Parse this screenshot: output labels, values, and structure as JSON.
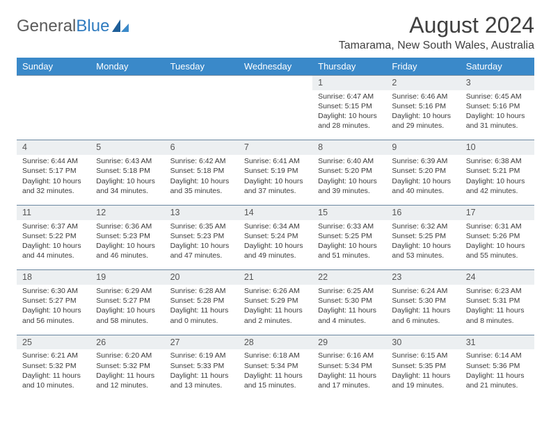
{
  "logo": {
    "text1": "General",
    "text2": "Blue"
  },
  "title": "August 2024",
  "location": "Tamarama, New South Wales, Australia",
  "colors": {
    "header_bg": "#3a89c9",
    "header_text": "#ffffff",
    "daynum_bg": "#eceff1",
    "border": "#6a87a0",
    "text": "#3a3a3a",
    "logo_gray": "#5a5a5a",
    "logo_blue": "#2f7bbf"
  },
  "weekdays": [
    "Sunday",
    "Monday",
    "Tuesday",
    "Wednesday",
    "Thursday",
    "Friday",
    "Saturday"
  ],
  "weeks": [
    {
      "nums": [
        "",
        "",
        "",
        "",
        "1",
        "2",
        "3"
      ],
      "cells": [
        null,
        null,
        null,
        null,
        {
          "sr": "Sunrise: 6:47 AM",
          "ss": "Sunset: 5:15 PM",
          "d1": "Daylight: 10 hours",
          "d2": "and 28 minutes."
        },
        {
          "sr": "Sunrise: 6:46 AM",
          "ss": "Sunset: 5:16 PM",
          "d1": "Daylight: 10 hours",
          "d2": "and 29 minutes."
        },
        {
          "sr": "Sunrise: 6:45 AM",
          "ss": "Sunset: 5:16 PM",
          "d1": "Daylight: 10 hours",
          "d2": "and 31 minutes."
        }
      ]
    },
    {
      "nums": [
        "4",
        "5",
        "6",
        "7",
        "8",
        "9",
        "10"
      ],
      "cells": [
        {
          "sr": "Sunrise: 6:44 AM",
          "ss": "Sunset: 5:17 PM",
          "d1": "Daylight: 10 hours",
          "d2": "and 32 minutes."
        },
        {
          "sr": "Sunrise: 6:43 AM",
          "ss": "Sunset: 5:18 PM",
          "d1": "Daylight: 10 hours",
          "d2": "and 34 minutes."
        },
        {
          "sr": "Sunrise: 6:42 AM",
          "ss": "Sunset: 5:18 PM",
          "d1": "Daylight: 10 hours",
          "d2": "and 35 minutes."
        },
        {
          "sr": "Sunrise: 6:41 AM",
          "ss": "Sunset: 5:19 PM",
          "d1": "Daylight: 10 hours",
          "d2": "and 37 minutes."
        },
        {
          "sr": "Sunrise: 6:40 AM",
          "ss": "Sunset: 5:20 PM",
          "d1": "Daylight: 10 hours",
          "d2": "and 39 minutes."
        },
        {
          "sr": "Sunrise: 6:39 AM",
          "ss": "Sunset: 5:20 PM",
          "d1": "Daylight: 10 hours",
          "d2": "and 40 minutes."
        },
        {
          "sr": "Sunrise: 6:38 AM",
          "ss": "Sunset: 5:21 PM",
          "d1": "Daylight: 10 hours",
          "d2": "and 42 minutes."
        }
      ]
    },
    {
      "nums": [
        "11",
        "12",
        "13",
        "14",
        "15",
        "16",
        "17"
      ],
      "cells": [
        {
          "sr": "Sunrise: 6:37 AM",
          "ss": "Sunset: 5:22 PM",
          "d1": "Daylight: 10 hours",
          "d2": "and 44 minutes."
        },
        {
          "sr": "Sunrise: 6:36 AM",
          "ss": "Sunset: 5:23 PM",
          "d1": "Daylight: 10 hours",
          "d2": "and 46 minutes."
        },
        {
          "sr": "Sunrise: 6:35 AM",
          "ss": "Sunset: 5:23 PM",
          "d1": "Daylight: 10 hours",
          "d2": "and 47 minutes."
        },
        {
          "sr": "Sunrise: 6:34 AM",
          "ss": "Sunset: 5:24 PM",
          "d1": "Daylight: 10 hours",
          "d2": "and 49 minutes."
        },
        {
          "sr": "Sunrise: 6:33 AM",
          "ss": "Sunset: 5:25 PM",
          "d1": "Daylight: 10 hours",
          "d2": "and 51 minutes."
        },
        {
          "sr": "Sunrise: 6:32 AM",
          "ss": "Sunset: 5:25 PM",
          "d1": "Daylight: 10 hours",
          "d2": "and 53 minutes."
        },
        {
          "sr": "Sunrise: 6:31 AM",
          "ss": "Sunset: 5:26 PM",
          "d1": "Daylight: 10 hours",
          "d2": "and 55 minutes."
        }
      ]
    },
    {
      "nums": [
        "18",
        "19",
        "20",
        "21",
        "22",
        "23",
        "24"
      ],
      "cells": [
        {
          "sr": "Sunrise: 6:30 AM",
          "ss": "Sunset: 5:27 PM",
          "d1": "Daylight: 10 hours",
          "d2": "and 56 minutes."
        },
        {
          "sr": "Sunrise: 6:29 AM",
          "ss": "Sunset: 5:27 PM",
          "d1": "Daylight: 10 hours",
          "d2": "and 58 minutes."
        },
        {
          "sr": "Sunrise: 6:28 AM",
          "ss": "Sunset: 5:28 PM",
          "d1": "Daylight: 11 hours",
          "d2": "and 0 minutes."
        },
        {
          "sr": "Sunrise: 6:26 AM",
          "ss": "Sunset: 5:29 PM",
          "d1": "Daylight: 11 hours",
          "d2": "and 2 minutes."
        },
        {
          "sr": "Sunrise: 6:25 AM",
          "ss": "Sunset: 5:30 PM",
          "d1": "Daylight: 11 hours",
          "d2": "and 4 minutes."
        },
        {
          "sr": "Sunrise: 6:24 AM",
          "ss": "Sunset: 5:30 PM",
          "d1": "Daylight: 11 hours",
          "d2": "and 6 minutes."
        },
        {
          "sr": "Sunrise: 6:23 AM",
          "ss": "Sunset: 5:31 PM",
          "d1": "Daylight: 11 hours",
          "d2": "and 8 minutes."
        }
      ]
    },
    {
      "nums": [
        "25",
        "26",
        "27",
        "28",
        "29",
        "30",
        "31"
      ],
      "cells": [
        {
          "sr": "Sunrise: 6:21 AM",
          "ss": "Sunset: 5:32 PM",
          "d1": "Daylight: 11 hours",
          "d2": "and 10 minutes."
        },
        {
          "sr": "Sunrise: 6:20 AM",
          "ss": "Sunset: 5:32 PM",
          "d1": "Daylight: 11 hours",
          "d2": "and 12 minutes."
        },
        {
          "sr": "Sunrise: 6:19 AM",
          "ss": "Sunset: 5:33 PM",
          "d1": "Daylight: 11 hours",
          "d2": "and 13 minutes."
        },
        {
          "sr": "Sunrise: 6:18 AM",
          "ss": "Sunset: 5:34 PM",
          "d1": "Daylight: 11 hours",
          "d2": "and 15 minutes."
        },
        {
          "sr": "Sunrise: 6:16 AM",
          "ss": "Sunset: 5:34 PM",
          "d1": "Daylight: 11 hours",
          "d2": "and 17 minutes."
        },
        {
          "sr": "Sunrise: 6:15 AM",
          "ss": "Sunset: 5:35 PM",
          "d1": "Daylight: 11 hours",
          "d2": "and 19 minutes."
        },
        {
          "sr": "Sunrise: 6:14 AM",
          "ss": "Sunset: 5:36 PM",
          "d1": "Daylight: 11 hours",
          "d2": "and 21 minutes."
        }
      ]
    }
  ]
}
